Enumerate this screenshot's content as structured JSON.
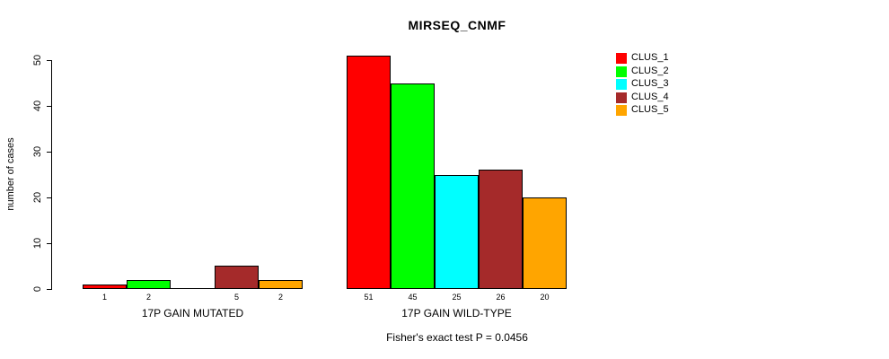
{
  "chart_data": {
    "type": "bar",
    "title": "MIRSEQ_CNMF",
    "ylabel": "number of cases",
    "ylim": [
      0,
      50
    ],
    "yticks": [
      0,
      10,
      20,
      30,
      40,
      50
    ],
    "grid": false,
    "legend_position": "right",
    "categories": [
      "17P GAIN MUTATED",
      "17P GAIN WILD-TYPE"
    ],
    "groups": [
      {
        "label": "17P GAIN MUTATED",
        "values": [
          1,
          2,
          0,
          5,
          2
        ]
      },
      {
        "label": "17P GAIN WILD-TYPE",
        "values": [
          51,
          45,
          25,
          26,
          20
        ]
      }
    ],
    "series": [
      {
        "name": "CLUS_1",
        "color": "#ff0000",
        "values": [
          1,
          51
        ]
      },
      {
        "name": "CLUS_2",
        "color": "#00ff00",
        "values": [
          2,
          45
        ]
      },
      {
        "name": "CLUS_3",
        "color": "#00ffff",
        "values": [
          0,
          25
        ]
      },
      {
        "name": "CLUS_4",
        "color": "#a52a2a",
        "values": [
          5,
          26
        ]
      },
      {
        "name": "CLUS_5",
        "color": "#ffa500",
        "values": [
          2,
          20
        ]
      }
    ],
    "bar_border_color": "#000000",
    "zero_bars_unlabeled": true,
    "annotation": "Fisher's exact test P = 0.0456"
  }
}
